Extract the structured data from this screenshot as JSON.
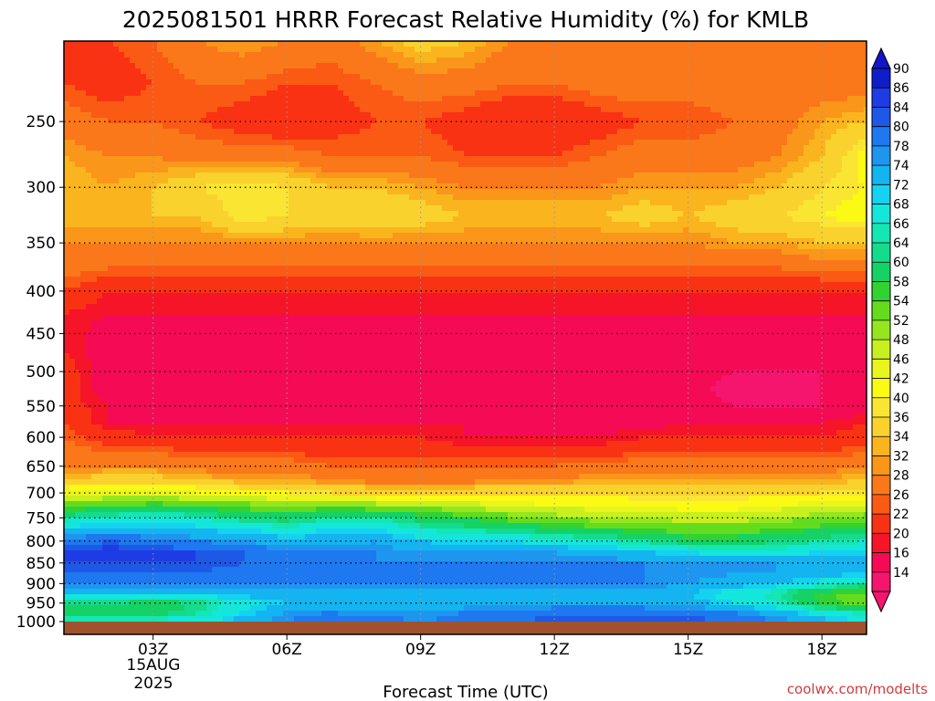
{
  "chart_data": {
    "type": "heatmap",
    "title": "2025081501 HRRR Forecast Relative Humidity (%) for KMLB",
    "xlabel": "Forecast Time (UTC)",
    "ylabel": "",
    "x_ticks": [
      {
        "hour": 3,
        "label": "03Z"
      },
      {
        "hour": 6,
        "label": "06Z"
      },
      {
        "hour": 9,
        "label": "09Z"
      },
      {
        "hour": 12,
        "label": "12Z"
      },
      {
        "hour": 15,
        "label": "15Z"
      },
      {
        "hour": 18,
        "label": "18Z"
      }
    ],
    "date_label": [
      "15AUG",
      "2025"
    ],
    "xlim": [
      1,
      19
    ],
    "y_scale": "log-pressure (hPa, inverted)",
    "ylim": [
      1000,
      200
    ],
    "y_ticks": [
      250,
      300,
      350,
      400,
      450,
      500,
      550,
      600,
      650,
      700,
      750,
      800,
      850,
      900,
      950,
      1000
    ],
    "hours": [
      1,
      2,
      3,
      4,
      5,
      6,
      7,
      8,
      9,
      10,
      11,
      12,
      13,
      14,
      15,
      16,
      17,
      18,
      19
    ],
    "levels": [
      1000,
      975,
      950,
      925,
      900,
      875,
      850,
      825,
      800,
      775,
      750,
      725,
      700,
      675,
      650,
      625,
      600,
      575,
      550,
      525,
      500,
      475,
      450,
      425,
      400,
      375,
      350,
      325,
      300,
      275,
      250,
      225,
      200
    ],
    "values": [
      [
        68,
        68,
        70,
        70,
        76,
        80,
        84,
        82,
        80,
        82,
        84,
        86,
        86,
        86,
        86,
        84,
        80,
        76,
        72
      ],
      [
        62,
        62,
        62,
        66,
        72,
        78,
        80,
        78,
        78,
        80,
        80,
        82,
        82,
        82,
        82,
        80,
        76,
        70,
        66
      ],
      [
        64,
        64,
        62,
        64,
        70,
        74,
        76,
        74,
        74,
        76,
        76,
        78,
        78,
        78,
        76,
        72,
        68,
        60,
        56
      ],
      [
        76,
        76,
        74,
        74,
        76,
        76,
        76,
        76,
        76,
        76,
        76,
        76,
        76,
        76,
        74,
        70,
        66,
        58,
        56
      ],
      [
        80,
        80,
        80,
        80,
        80,
        80,
        80,
        80,
        80,
        80,
        80,
        80,
        80,
        80,
        78,
        76,
        74,
        70,
        66
      ],
      [
        84,
        84,
        84,
        84,
        82,
        82,
        82,
        80,
        80,
        80,
        80,
        80,
        80,
        80,
        80,
        78,
        78,
        76,
        74
      ],
      [
        86,
        86,
        86,
        86,
        84,
        82,
        82,
        80,
        80,
        80,
        80,
        80,
        80,
        80,
        78,
        78,
        78,
        78,
        76
      ],
      [
        86,
        88,
        86,
        86,
        84,
        80,
        80,
        80,
        78,
        78,
        78,
        78,
        76,
        74,
        72,
        70,
        70,
        72,
        72
      ],
      [
        82,
        84,
        82,
        80,
        78,
        76,
        76,
        78,
        74,
        72,
        72,
        70,
        68,
        66,
        62,
        62,
        64,
        66,
        68
      ],
      [
        74,
        76,
        76,
        74,
        72,
        70,
        72,
        72,
        68,
        66,
        64,
        62,
        60,
        58,
        56,
        56,
        58,
        60,
        60
      ],
      [
        66,
        68,
        70,
        68,
        64,
        62,
        66,
        66,
        62,
        60,
        56,
        54,
        52,
        52,
        50,
        50,
        52,
        54,
        56
      ],
      [
        56,
        58,
        60,
        58,
        56,
        54,
        56,
        54,
        52,
        50,
        48,
        46,
        46,
        44,
        44,
        44,
        46,
        48,
        48
      ],
      [
        46,
        48,
        48,
        46,
        44,
        42,
        40,
        40,
        40,
        40,
        40,
        40,
        40,
        40,
        40,
        40,
        40,
        40,
        42
      ],
      [
        36,
        38,
        38,
        36,
        34,
        34,
        32,
        30,
        30,
        30,
        32,
        32,
        34,
        34,
        34,
        34,
        34,
        34,
        36
      ],
      [
        32,
        32,
        32,
        30,
        30,
        30,
        28,
        28,
        28,
        28,
        28,
        28,
        30,
        30,
        30,
        30,
        30,
        30,
        32
      ],
      [
        30,
        28,
        28,
        26,
        26,
        26,
        24,
        24,
        24,
        24,
        24,
        24,
        24,
        26,
        26,
        26,
        26,
        26,
        28
      ],
      [
        28,
        24,
        22,
        22,
        22,
        22,
        22,
        22,
        22,
        20,
        20,
        20,
        20,
        22,
        22,
        22,
        22,
        22,
        24
      ],
      [
        26,
        20,
        20,
        20,
        20,
        20,
        20,
        20,
        20,
        20,
        18,
        18,
        18,
        18,
        20,
        20,
        20,
        20,
        22
      ],
      [
        24,
        20,
        18,
        18,
        18,
        18,
        18,
        18,
        18,
        18,
        18,
        18,
        18,
        18,
        18,
        16,
        16,
        16,
        18
      ],
      [
        24,
        18,
        18,
        18,
        18,
        18,
        18,
        18,
        18,
        18,
        18,
        18,
        18,
        18,
        18,
        14,
        14,
        16,
        16
      ],
      [
        24,
        18,
        18,
        18,
        18,
        18,
        16,
        18,
        18,
        18,
        18,
        18,
        18,
        18,
        18,
        16,
        16,
        16,
        16
      ],
      [
        22,
        18,
        16,
        16,
        16,
        18,
        18,
        18,
        18,
        16,
        16,
        16,
        16,
        18,
        18,
        18,
        18,
        18,
        18
      ],
      [
        22,
        18,
        18,
        18,
        18,
        18,
        18,
        18,
        18,
        16,
        16,
        16,
        16,
        16,
        18,
        18,
        18,
        18,
        18
      ],
      [
        22,
        20,
        20,
        20,
        20,
        20,
        20,
        20,
        20,
        20,
        20,
        20,
        20,
        20,
        20,
        20,
        20,
        20,
        20
      ],
      [
        26,
        22,
        22,
        22,
        22,
        22,
        22,
        22,
        22,
        22,
        22,
        22,
        22,
        22,
        22,
        22,
        22,
        22,
        22
      ],
      [
        30,
        28,
        28,
        28,
        28,
        28,
        28,
        28,
        28,
        28,
        28,
        28,
        28,
        28,
        28,
        28,
        28,
        30,
        30
      ],
      [
        32,
        32,
        32,
        32,
        32,
        32,
        32,
        32,
        32,
        32,
        32,
        32,
        32,
        32,
        32,
        34,
        34,
        36,
        36
      ],
      [
        36,
        36,
        36,
        36,
        42,
        40,
        38,
        40,
        38,
        36,
        36,
        36,
        36,
        38,
        36,
        38,
        40,
        42,
        44
      ],
      [
        36,
        34,
        36,
        40,
        42,
        40,
        36,
        36,
        34,
        32,
        32,
        32,
        32,
        34,
        34,
        34,
        36,
        40,
        42
      ],
      [
        34,
        32,
        32,
        30,
        30,
        30,
        28,
        28,
        28,
        26,
        26,
        26,
        28,
        30,
        30,
        30,
        32,
        36,
        44
      ],
      [
        30,
        28,
        28,
        26,
        24,
        22,
        24,
        26,
        26,
        24,
        22,
        22,
        24,
        26,
        26,
        28,
        30,
        34,
        36
      ],
      [
        26,
        24,
        26,
        28,
        28,
        26,
        26,
        28,
        30,
        30,
        28,
        28,
        30,
        30,
        30,
        30,
        30,
        30,
        30
      ],
      [
        26,
        26,
        28,
        32,
        34,
        32,
        30,
        34,
        38,
        36,
        32,
        30,
        30,
        32,
        32,
        30,
        30,
        30,
        30
      ]
    ],
    "colorbar": {
      "ticks": [
        "90",
        "86",
        "84",
        "80",
        "78",
        "74",
        "72",
        "68",
        "66",
        "64",
        "60",
        "58",
        "54",
        "52",
        "48",
        "46",
        "42",
        "40",
        "36",
        "34",
        "32",
        "28",
        "26",
        "22",
        "20",
        "16",
        "14"
      ],
      "colors": [
        "#0f1ec8",
        "#1e3ce6",
        "#1e58e6",
        "#1e78f0",
        "#1e96f0",
        "#14b4f0",
        "#14d2f0",
        "#14e6dc",
        "#14e6b4",
        "#14dc8c",
        "#14d264",
        "#32d232",
        "#64dc1e",
        "#96e61e",
        "#c8f01e",
        "#eaf51e",
        "#fafa14",
        "#fae632",
        "#fad22d",
        "#fab41e",
        "#fa9619",
        "#fa7819",
        "#fa5a14",
        "#fa3214",
        "#f51428",
        "#f50a55",
        "#f5146e"
      ],
      "above": "#1414c8",
      "below": "#f5146e"
    },
    "grid": true,
    "ground": {
      "color": "#a0522d"
    },
    "credit": "coolwx.com/modelts"
  }
}
